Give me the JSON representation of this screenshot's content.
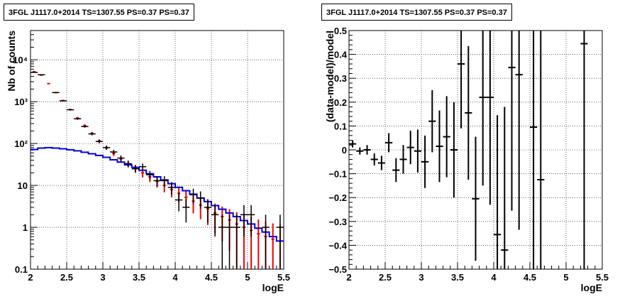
{
  "chart_data": [
    {
      "type": "histogram",
      "title": "3FGL J1117.0+2014 TS=1307.55 PS=0.37 PS=0.37",
      "xlabel": "logE",
      "ylabel": "Nb of counts",
      "xlim": [
        2,
        5.5
      ],
      "ylim": [
        0.1,
        50000
      ],
      "ylog": true,
      "grid": true,
      "x_ticks": [
        "2",
        "2.5",
        "3",
        "3.5",
        "4",
        "4.5",
        "5",
        "5.5"
      ],
      "y_ticks": [
        "0.1",
        "1",
        "10",
        "10²",
        "10³",
        "10⁴"
      ],
      "colors": {
        "data": "#000000",
        "model_total": "#ee0000",
        "component": "#0000dd"
      },
      "bin_width": 0.1,
      "data_points": [
        {
          "x": 2.05,
          "y": 5000,
          "err": 70
        },
        {
          "x": 2.15,
          "y": 4400,
          "err": 66
        },
        {
          "x": 2.35,
          "y": 1650,
          "err": 40
        },
        {
          "x": 2.45,
          "y": 1050,
          "err": 32
        },
        {
          "x": 2.55,
          "y": 640,
          "err": 25
        },
        {
          "x": 2.65,
          "y": 390,
          "err": 20
        },
        {
          "x": 2.75,
          "y": 255,
          "err": 16
        },
        {
          "x": 2.85,
          "y": 170,
          "err": 13
        },
        {
          "x": 2.95,
          "y": 112,
          "err": 10
        },
        {
          "x": 3.05,
          "y": 80,
          "err": 9
        },
        {
          "x": 3.15,
          "y": 63,
          "err": 8
        },
        {
          "x": 3.25,
          "y": 45,
          "err": 7
        },
        {
          "x": 3.35,
          "y": 33,
          "err": 6
        },
        {
          "x": 3.45,
          "y": 25,
          "err": 5
        },
        {
          "x": 3.55,
          "y": 28,
          "err": 5.3
        },
        {
          "x": 3.65,
          "y": 18,
          "err": 4.2
        },
        {
          "x": 3.75,
          "y": 13,
          "err": 3.6
        },
        {
          "x": 3.85,
          "y": 13,
          "err": 3.6
        },
        {
          "x": 3.95,
          "y": 9,
          "err": 3
        },
        {
          "x": 4.05,
          "y": 4.5,
          "err": 2.1
        },
        {
          "x": 4.15,
          "y": 3,
          "err": 1.7
        },
        {
          "x": 4.25,
          "y": 6,
          "err": 2.4
        },
        {
          "x": 4.35,
          "y": 5,
          "err": 2.2
        },
        {
          "x": 4.45,
          "y": 3,
          "err": 1.7
        },
        {
          "x": 4.55,
          "y": 2,
          "err": 1.4
        },
        {
          "x": 4.65,
          "y": 1,
          "err": 1
        },
        {
          "x": 4.75,
          "y": 1,
          "err": 1
        },
        {
          "x": 4.85,
          "y": 1,
          "err": 1
        },
        {
          "x": 4.95,
          "y": 2,
          "err": 1.4
        },
        {
          "x": 5.05,
          "y": 2,
          "err": 1.4
        },
        {
          "x": 5.25,
          "y": 1,
          "err": 1
        },
        {
          "x": 5.45,
          "y": 1,
          "err": 1
        }
      ],
      "model_total": [
        5200,
        4300,
        2700,
        1650,
        1070,
        650,
        410,
        270,
        175,
        115,
        80,
        58,
        43,
        33,
        26,
        20,
        16,
        12.5,
        10,
        8,
        6.5,
        5.2,
        4.2,
        3.4,
        2.8,
        2.2,
        1.8,
        1.5,
        1.2,
        1.0,
        0.85,
        0.7,
        0.6,
        0.52,
        0.47
      ],
      "component": [
        72,
        78,
        80,
        78,
        75,
        71,
        67,
        62,
        57,
        52,
        47,
        41,
        36,
        31,
        27,
        23,
        19,
        16,
        13.5,
        11,
        9,
        7.5,
        6.2,
        5,
        4.1,
        3.3,
        2.7,
        2.2,
        1.8,
        1.45,
        1.2,
        0.95,
        0.77,
        0.6,
        0.47
      ]
    },
    {
      "type": "scatter",
      "title": "3FGL J1117.0+2014 TS=1307.55 PS=0.37 PS=0.37",
      "xlabel": "logE",
      "ylabel": "(data-model)/model",
      "xlim": [
        2,
        5.5
      ],
      "ylim": [
        -0.5,
        0.5
      ],
      "grid": true,
      "x_ticks": [
        "2",
        "2.5",
        "3",
        "3.5",
        "4",
        "4.5",
        "5",
        "5.5"
      ],
      "y_ticks": [
        "−0.5",
        "−0.4",
        "−0.3",
        "−0.2",
        "−0.1",
        "0",
        "0.1",
        "0.2",
        "0.3",
        "0.4",
        "0.5"
      ],
      "color": "#000000",
      "bin_width": 0.1,
      "points": [
        {
          "x": 2.05,
          "y": 0.025,
          "err": 0.015
        },
        {
          "x": 2.15,
          "y": -0.005,
          "err": 0.015
        },
        {
          "x": 2.25,
          "y": 0.0,
          "err": 0.02
        },
        {
          "x": 2.35,
          "y": -0.04,
          "err": 0.025
        },
        {
          "x": 2.45,
          "y": -0.055,
          "err": 0.03
        },
        {
          "x": 2.55,
          "y": 0.03,
          "err": 0.04
        },
        {
          "x": 2.65,
          "y": -0.085,
          "err": 0.05
        },
        {
          "x": 2.75,
          "y": -0.04,
          "err": 0.06
        },
        {
          "x": 2.85,
          "y": 0.01,
          "err": 0.07
        },
        {
          "x": 2.95,
          "y": -0.005,
          "err": 0.09
        },
        {
          "x": 3.05,
          "y": -0.05,
          "err": 0.11
        },
        {
          "x": 3.15,
          "y": 0.12,
          "err": 0.13
        },
        {
          "x": 3.25,
          "y": 0.015,
          "err": 0.15
        },
        {
          "x": 3.35,
          "y": 0.055,
          "err": 0.17
        },
        {
          "x": 3.45,
          "y": 0.0,
          "err": 0.2
        },
        {
          "x": 3.55,
          "y": 0.36,
          "err": 0.27
        },
        {
          "x": 3.65,
          "y": 0.155,
          "err": 0.28
        },
        {
          "x": 3.75,
          "y": -0.205,
          "err": 0.26
        },
        {
          "x": 3.85,
          "y": 0.22,
          "err": 0.37
        },
        {
          "x": 3.95,
          "y": 0.22,
          "err": 0.45
        },
        {
          "x": 4.05,
          "y": -0.355,
          "err": 0.5
        },
        {
          "x": 4.15,
          "y": -0.42,
          "err": 0.6
        },
        {
          "x": 4.25,
          "y": 0.345,
          "err": 0.6
        },
        {
          "x": 4.35,
          "y": 0.315,
          "err": 0.65
        },
        {
          "x": 4.55,
          "y": 0.095,
          "err": 1.0
        },
        {
          "x": 4.65,
          "y": -0.125,
          "err": 0.9
        },
        {
          "x": 5.25,
          "y": 0.445,
          "err": 1.2
        }
      ]
    }
  ]
}
